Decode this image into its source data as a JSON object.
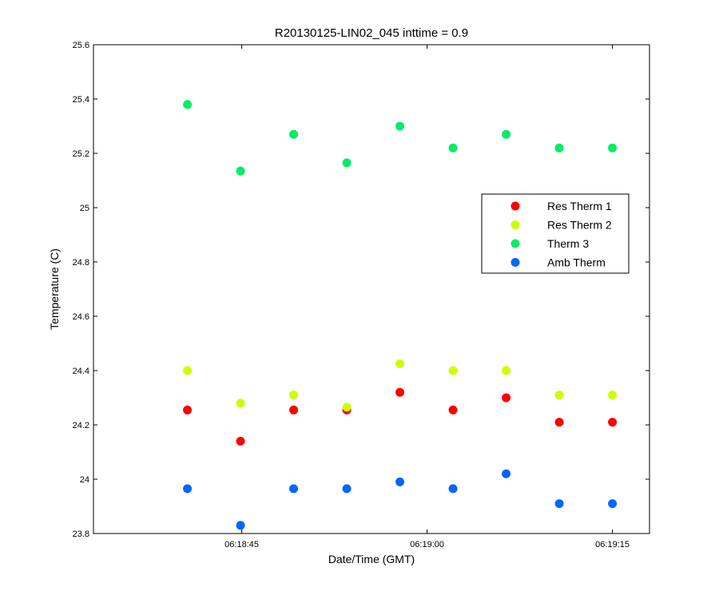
{
  "chart_data": {
    "type": "scatter",
    "title": "R20130125-LIN02_045 inttime = 0.9",
    "xlabel": "Date/Time (GMT)",
    "ylabel": "Temperature (C)",
    "x_unit": "time (GMT)",
    "xlim": [
      "06:18:33",
      "06:19:18"
    ],
    "ylim": [
      23.8,
      25.6
    ],
    "x_ticks": [
      "06:18:45",
      "06:19:00",
      "06:19:15"
    ],
    "y_ticks": [
      "23.8",
      "24",
      "24.2",
      "24.4",
      "24.6",
      "24.8",
      "25",
      "25.2",
      "25.4",
      "25.6"
    ],
    "grid": false,
    "legend_position": "right",
    "x": [
      "06:18:40.6",
      "06:18:44.9",
      "06:18:49.2",
      "06:18:53.5",
      "06:18:57.8",
      "06:19:02.1",
      "06:19:06.4",
      "06:19:10.7",
      "06:19:15.0"
    ],
    "series": [
      {
        "name": "Res Therm 1",
        "color": "#ff0000",
        "values": [
          24.255,
          24.14,
          24.255,
          24.255,
          24.32,
          24.255,
          24.3,
          24.21,
          24.21
        ]
      },
      {
        "name": "Res Therm 2",
        "color": "#ccff00",
        "values": [
          24.4,
          24.28,
          24.31,
          24.265,
          24.425,
          24.4,
          24.4,
          24.31,
          24.31
        ]
      },
      {
        "name": "Therm 3",
        "color": "#00ee66",
        "values": [
          25.38,
          25.135,
          25.27,
          25.165,
          25.3,
          25.22,
          25.27,
          25.22,
          25.22
        ]
      },
      {
        "name": "Amb Therm",
        "color": "#0066ff",
        "values": [
          23.965,
          23.83,
          23.965,
          23.965,
          23.99,
          23.965,
          24.02,
          23.91,
          23.91
        ]
      }
    ]
  }
}
